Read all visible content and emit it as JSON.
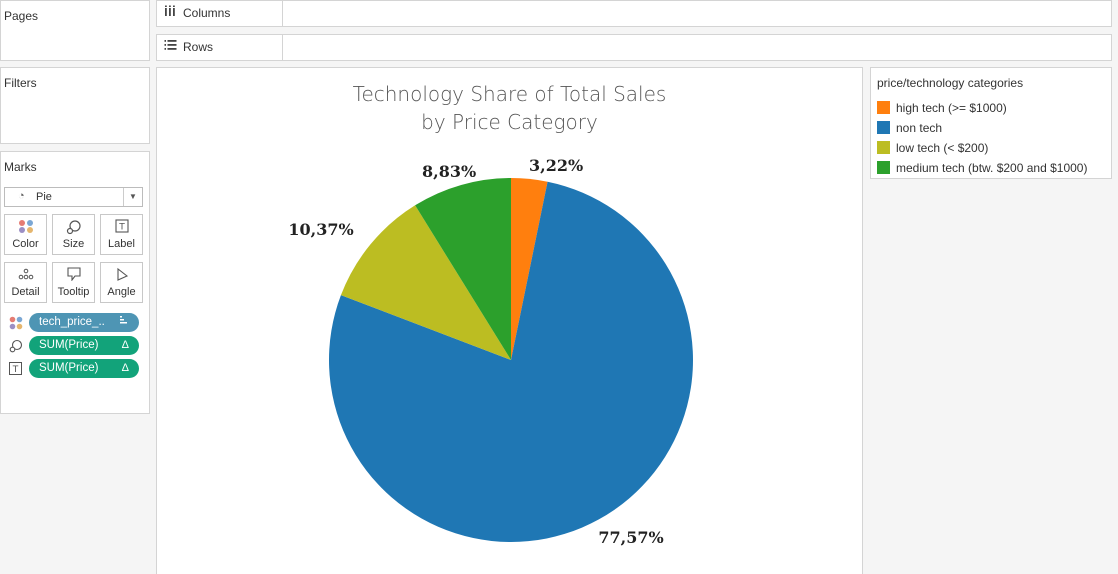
{
  "cards": {
    "pages": "Pages",
    "filters": "Filters",
    "marks": "Marks"
  },
  "shelves": {
    "columns": "Columns",
    "rows": "Rows"
  },
  "marks": {
    "type": "Pie",
    "buttons": [
      "Color",
      "Size",
      "Label",
      "Detail",
      "Tooltip",
      "Angle"
    ],
    "pills": [
      {
        "label": "tech_price_..",
        "end": "",
        "color": "#4e95b4"
      },
      {
        "label": "SUM(Price)",
        "end": "Δ",
        "color": "#12a37a"
      },
      {
        "label": "SUM(Price)",
        "end": "Δ",
        "color": "#12a37a"
      }
    ]
  },
  "chart_title_line1": "Technology Share of Total Sales",
  "chart_title_line2": "by Price Category",
  "chart_data": {
    "type": "pie",
    "title": "Technology Share of Total Sales by Price Category",
    "slices": [
      {
        "label": "high tech (>= $1000)",
        "value": 3.22,
        "display": "3,22%",
        "color": "#ff7f0e"
      },
      {
        "label": "non tech",
        "value": 77.57,
        "display": "77,57%",
        "color": "#1f77b4"
      },
      {
        "label": "low tech (< $200)",
        "value": 10.37,
        "display": "10,37%",
        "color": "#bcbd22"
      },
      {
        "label": "medium tech (btw. $200 and $1000)",
        "value": 8.83,
        "display": "8,83%",
        "color": "#2ca02c"
      }
    ],
    "legend_placement": "right"
  },
  "legend": {
    "title": "price/technology categories",
    "items": [
      {
        "label": "high tech (>= $1000)",
        "color": "#ff7f0e"
      },
      {
        "label": "non tech",
        "color": "#1f77b4"
      },
      {
        "label": "low tech (< $200)",
        "color": "#bcbd22"
      },
      {
        "label": "medium tech (btw. $200 and $1000)",
        "color": "#2ca02c"
      }
    ]
  }
}
